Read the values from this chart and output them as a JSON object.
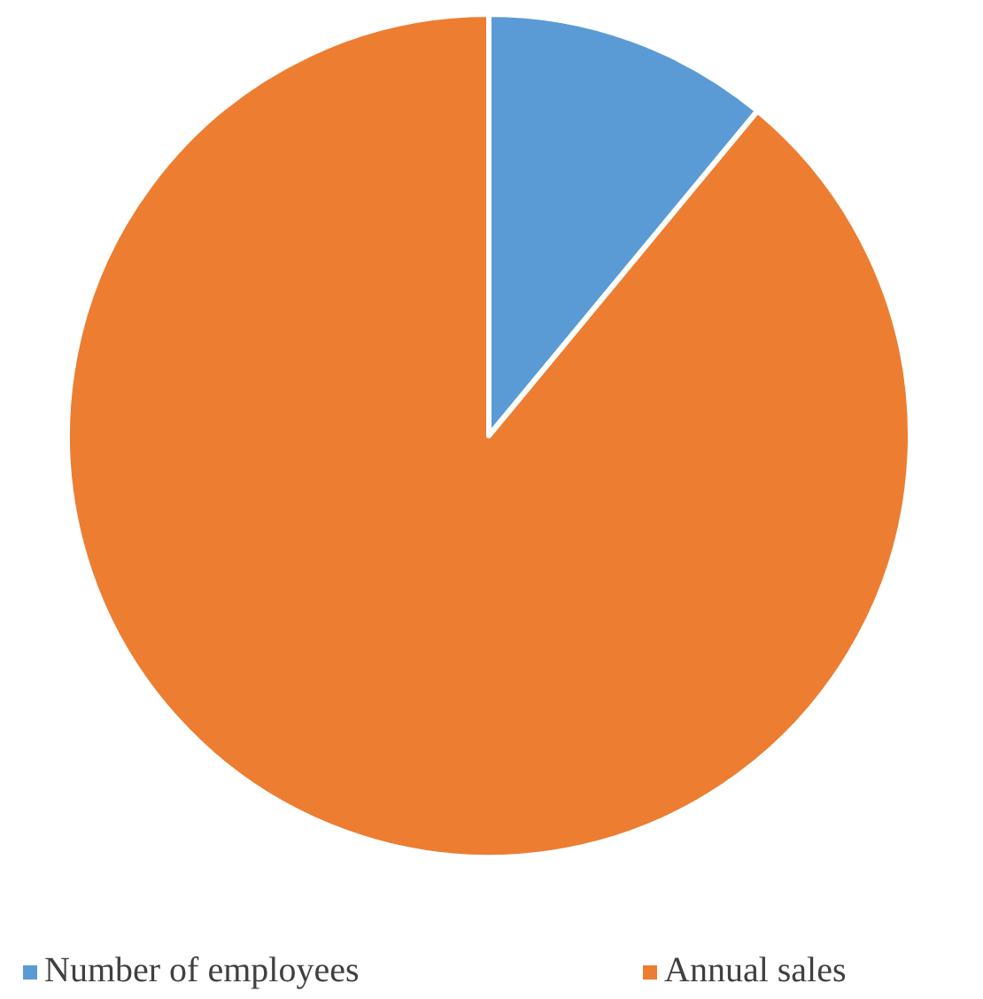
{
  "chart_data": {
    "type": "pie",
    "categories": [
      "Number of employees",
      "Annual sales"
    ],
    "values": [
      11,
      89
    ],
    "colors": [
      "#5b9bd5",
      "#ed7d31"
    ],
    "legend": "bottom"
  }
}
